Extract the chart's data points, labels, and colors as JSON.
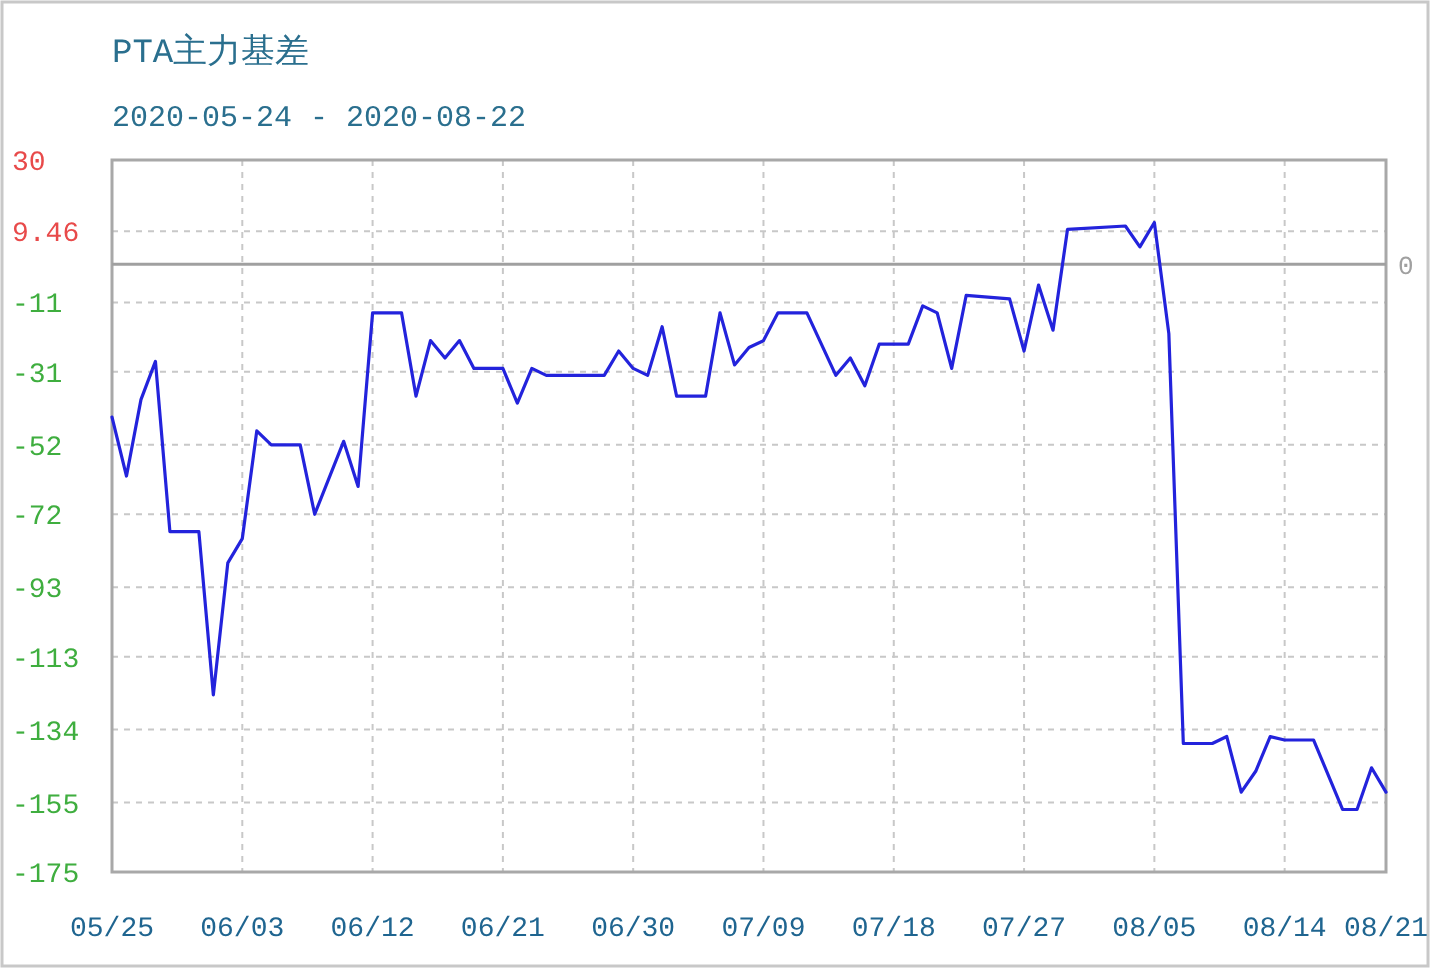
{
  "chart_data": {
    "type": "line",
    "title": "PTA主力基差",
    "subtitle": "2020-05-24 - 2020-08-22",
    "x": [
      "2020-05-25",
      "2020-05-26",
      "2020-05-27",
      "2020-05-28",
      "2020-05-29",
      "2020-05-31",
      "2020-06-01",
      "2020-06-02",
      "2020-06-03",
      "2020-06-04",
      "2020-06-05",
      "2020-06-07",
      "2020-06-08",
      "2020-06-10",
      "2020-06-11",
      "2020-06-12",
      "2020-06-14",
      "2020-06-15",
      "2020-06-16",
      "2020-06-17",
      "2020-06-18",
      "2020-06-19",
      "2020-06-21",
      "2020-06-22",
      "2020-06-23",
      "2020-06-24",
      "2020-06-28",
      "2020-06-29",
      "2020-06-30",
      "2020-07-01",
      "2020-07-02",
      "2020-07-03",
      "2020-07-05",
      "2020-07-06",
      "2020-07-07",
      "2020-07-08",
      "2020-07-09",
      "2020-07-10",
      "2020-07-12",
      "2020-07-14",
      "2020-07-15",
      "2020-07-16",
      "2020-07-17",
      "2020-07-19",
      "2020-07-20",
      "2020-07-21",
      "2020-07-22",
      "2020-07-23",
      "2020-07-26",
      "2020-07-27",
      "2020-07-28",
      "2020-07-29",
      "2020-07-30",
      "2020-08-03",
      "2020-08-04",
      "2020-08-05",
      "2020-08-06",
      "2020-08-07",
      "2020-08-09",
      "2020-08-10",
      "2020-08-11",
      "2020-08-12",
      "2020-08-13",
      "2020-08-14",
      "2020-08-16",
      "2020-08-18",
      "2020-08-19",
      "2020-08-20",
      "2020-08-21"
    ],
    "series": [
      {
        "color": "#2323dc",
        "values": [
          -44,
          -61,
          -39,
          -28,
          -77,
          -77,
          -124,
          -86,
          -79,
          -48,
          -52,
          -52,
          -72,
          -51,
          -64,
          -14,
          -14,
          -38,
          -22,
          -27,
          -22,
          -30,
          -30,
          -40,
          -30,
          -32,
          -32,
          -25,
          -30,
          -32,
          -18,
          -38,
          -38,
          -14,
          -29,
          -24,
          -22,
          -14,
          -14,
          -32,
          -27,
          -35,
          -23,
          -23,
          -12,
          -14,
          -30,
          -9,
          -10,
          -25,
          -6,
          -19,
          10,
          11,
          5,
          12,
          -20,
          -138,
          -138,
          -136,
          -152,
          -146,
          -136,
          -137,
          -137,
          -157,
          -157,
          -145,
          -152
        ]
      }
    ],
    "xlim": [
      "2020-05-25",
      "2020-08-21"
    ],
    "xticks": [
      {
        "value": "2020-05-25",
        "label": "05/25"
      },
      {
        "value": "2020-06-03",
        "label": "06/03"
      },
      {
        "value": "2020-06-12",
        "label": "06/12"
      },
      {
        "value": "2020-06-21",
        "label": "06/21"
      },
      {
        "value": "2020-06-30",
        "label": "06/30"
      },
      {
        "value": "2020-07-09",
        "label": "07/09"
      },
      {
        "value": "2020-07-18",
        "label": "07/18"
      },
      {
        "value": "2020-07-27",
        "label": "07/27"
      },
      {
        "value": "2020-08-05",
        "label": "08/05"
      },
      {
        "value": "2020-08-14",
        "label": "08/14"
      },
      {
        "value": "2020-08-21",
        "label": "08/21"
      }
    ],
    "ylim": [
      -175,
      30
    ],
    "yticks": [
      30,
      9.46,
      -11,
      -31,
      -52,
      -72,
      -93,
      -113,
      -134,
      -155,
      -175
    ],
    "grid": true,
    "ref_lines": [
      {
        "axis": "y",
        "value": 0,
        "label": "0",
        "color": "#a0a0a0"
      }
    ]
  }
}
